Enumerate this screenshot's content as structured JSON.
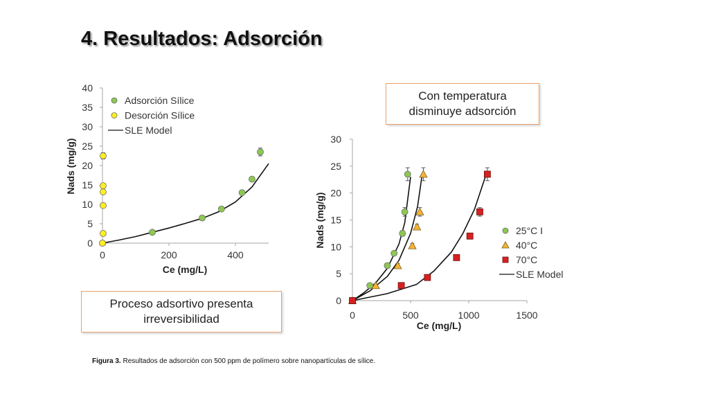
{
  "slide": {
    "title": "4. Resultados: Adsorción",
    "callout_top": [
      "Con temperatura",
      "disminuye adsorción"
    ],
    "callout_bottom": [
      "Proceso adsortivo presenta",
      "irreversibilidad"
    ],
    "caption_label": "Figura 3.",
    "caption_text": " Resultados de adsorción con 500 ppm de polímero sobre nanopartículas de sílice."
  },
  "chart_data": [
    {
      "type": "scatter",
      "xlabel": "Ce (mg/L)",
      "ylabel": "Nads (mg/g)",
      "xlim": [
        0,
        500
      ],
      "ylim": [
        0,
        40
      ],
      "xticks": [
        0,
        200,
        400
      ],
      "yticks": [
        0,
        5,
        10,
        15,
        20,
        25,
        30,
        35,
        40
      ],
      "legend_position": "top-left",
      "series": [
        {
          "name": "Adsorción Sílice",
          "marker": "circle",
          "color": "#8dc852",
          "points": [
            [
              0,
              0
            ],
            [
              150,
              2.8
            ],
            [
              300,
              6.5
            ],
            [
              358,
              8.8
            ],
            [
              420,
              13.0
            ],
            [
              450,
              16.5
            ],
            [
              475,
              23.5
            ]
          ],
          "error": [
            0,
            0.3,
            0.4,
            0.4,
            0.4,
            0.4,
            1.0
          ]
        },
        {
          "name": "Desorción Sílice",
          "marker": "circle",
          "color": "#ffee22",
          "points": [
            [
              0,
              0
            ],
            [
              2,
              2.5
            ],
            [
              2,
              9.7
            ],
            [
              2,
              13.2
            ],
            [
              2,
              14.8
            ],
            [
              2,
              22.5
            ]
          ],
          "error": [
            0,
            0,
            0,
            0,
            0,
            0.8
          ]
        },
        {
          "name": "SLE Model",
          "marker": "line",
          "color": "#111111",
          "points": [
            [
              0,
              0
            ],
            [
              50,
              0.8
            ],
            [
              100,
              1.7
            ],
            [
              150,
              2.8
            ],
            [
              200,
              3.9
            ],
            [
              250,
              5.1
            ],
            [
              300,
              6.4
            ],
            [
              350,
              8.1
            ],
            [
              400,
              10.6
            ],
            [
              450,
              14.5
            ],
            [
              500,
              20.5
            ]
          ]
        }
      ]
    },
    {
      "type": "scatter",
      "xlabel": "Ce (mg/L)",
      "ylabel": "Nads (mg/g)",
      "xlim": [
        0,
        1500
      ],
      "ylim": [
        0,
        30
      ],
      "xticks": [
        0,
        500,
        1000,
        1500
      ],
      "yticks": [
        0,
        5,
        10,
        15,
        20,
        25,
        30
      ],
      "legend_position": "right",
      "series": [
        {
          "name": "25°C I",
          "marker": "circle",
          "color": "#8dc852",
          "points": [
            [
              0,
              0
            ],
            [
              150,
              2.8
            ],
            [
              300,
              6.5
            ],
            [
              358,
              8.8
            ],
            [
              430,
              12.5
            ],
            [
              450,
              16.5
            ],
            [
              475,
              23.5
            ]
          ],
          "error": [
            0,
            0.3,
            0.4,
            0.4,
            0.5,
            0.8,
            1.2
          ]
        },
        {
          "name": "40°C",
          "marker": "triangle",
          "color": "#f5b335",
          "points": [
            [
              0,
              0
            ],
            [
              200,
              2.8
            ],
            [
              390,
              6.5
            ],
            [
              515,
              10.2
            ],
            [
              555,
              13.7
            ],
            [
              580,
              16.5
            ],
            [
              610,
              23.5
            ]
          ],
          "error": [
            0,
            0.3,
            0.4,
            0.4,
            0.5,
            0.8,
            1.2
          ]
        },
        {
          "name": "70°C",
          "marker": "square",
          "color": "#d82020",
          "points": [
            [
              0,
              0
            ],
            [
              420,
              2.8
            ],
            [
              645,
              4.3
            ],
            [
              895,
              8.0
            ],
            [
              1010,
              12.0
            ],
            [
              1095,
              16.5
            ],
            [
              1160,
              23.5
            ]
          ],
          "error": [
            0,
            0,
            0,
            0,
            0.4,
            0.8,
            1.2
          ]
        },
        {
          "name": "SLE Model",
          "marker": "line",
          "color": "#111111",
          "curves": [
            [
              [
                0,
                0
              ],
              [
                100,
                1.5
              ],
              [
                200,
                3.3
              ],
              [
                300,
                6.0
              ],
              [
                400,
                10.5
              ],
              [
                450,
                14.5
              ],
              [
                500,
                23.0
              ]
            ],
            [
              [
                0,
                0
              ],
              [
                150,
                1.8
              ],
              [
                300,
                4.5
              ],
              [
                400,
                7.5
              ],
              [
                500,
                12.5
              ],
              [
                560,
                17.5
              ],
              [
                600,
                23.5
              ]
            ],
            [
              [
                0,
                0
              ],
              [
                300,
                1.3
              ],
              [
                550,
                3.0
              ],
              [
                700,
                5.5
              ],
              [
                850,
                9.0
              ],
              [
                950,
                12.5
              ],
              [
                1050,
                17.0
              ],
              [
                1150,
                23.5
              ]
            ]
          ]
        }
      ]
    }
  ]
}
